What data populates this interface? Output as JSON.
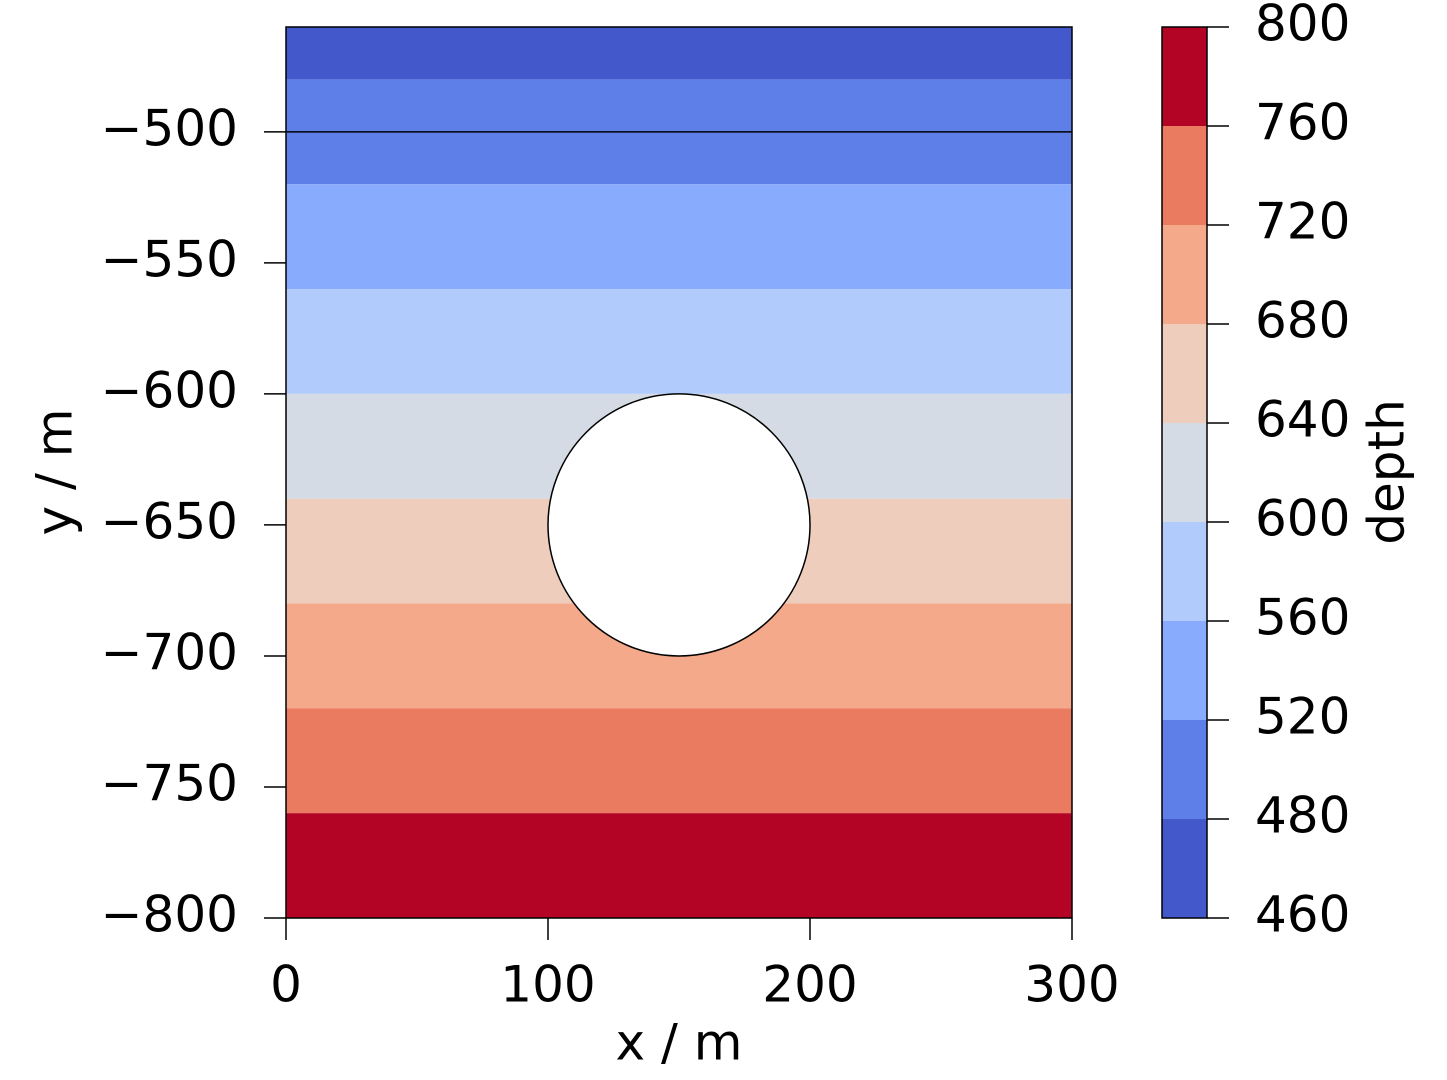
{
  "chart_data": {
    "type": "contourf",
    "xlabel": "x / m",
    "ylabel": "y / m",
    "colorbar_label": "depth",
    "xlim": [
      0,
      300
    ],
    "ylim": [
      -800,
      -460
    ],
    "xticks": [
      0,
      100,
      200,
      300
    ],
    "yticks": [
      {
        "value": -800,
        "label": "−800"
      },
      {
        "value": -750,
        "label": "−750"
      },
      {
        "value": -700,
        "label": "−700"
      },
      {
        "value": -650,
        "label": "−650"
      },
      {
        "value": -600,
        "label": "−600"
      },
      {
        "value": -550,
        "label": "−550"
      },
      {
        "value": -500,
        "label": "−500"
      }
    ],
    "levels": [
      460,
      480,
      520,
      560,
      600,
      640,
      680,
      720,
      760,
      800
    ],
    "colors": [
      "#4358cb",
      "#5f7fe8",
      "#88abfd",
      "#b1cbfc",
      "#d5dbe5",
      "#efcdbd",
      "#f5a98b",
      "#ea7b60",
      "#b40426"
    ],
    "contour_line_y": -500,
    "hole": {
      "cx": 150,
      "cy": -650,
      "r": 50
    }
  }
}
